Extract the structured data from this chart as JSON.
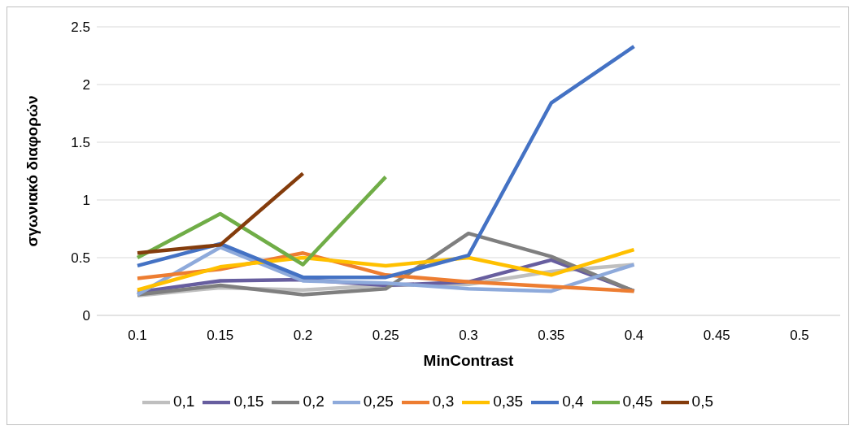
{
  "chart_data": {
    "type": "line",
    "xlabel": "MinContrast",
    "ylabel": "σγωνιακό διαφορών",
    "categories": [
      "0.1",
      "0.15",
      "0.2",
      "0.25",
      "0.3",
      "0.35",
      "0.4",
      "0.45",
      "0.5"
    ],
    "series": [
      {
        "name": "0,1",
        "color": "#bfbfbf",
        "values": [
          0.17,
          0.24,
          0.22,
          0.26,
          0.27,
          0.38,
          0.44,
          null,
          null
        ]
      },
      {
        "name": "0,15",
        "color": "#675e9f",
        "values": [
          0.2,
          0.3,
          0.31,
          0.26,
          0.29,
          0.48,
          0.21,
          null,
          null
        ]
      },
      {
        "name": "0,2",
        "color": "#7f7f7f",
        "values": [
          0.18,
          0.26,
          0.18,
          0.23,
          0.71,
          0.51,
          0.21,
          null,
          null
        ]
      },
      {
        "name": "0,25",
        "color": "#8eaadb",
        "values": [
          0.18,
          0.59,
          0.3,
          0.28,
          0.23,
          0.21,
          0.44,
          null,
          null
        ]
      },
      {
        "name": "0,3",
        "color": "#ed7d31",
        "values": [
          0.32,
          0.4,
          0.54,
          0.35,
          0.29,
          0.25,
          0.21,
          null,
          null
        ]
      },
      {
        "name": "0,35",
        "color": "#ffc000",
        "values": [
          0.22,
          0.42,
          0.5,
          0.43,
          0.5,
          0.35,
          0.57,
          null,
          null
        ]
      },
      {
        "name": "0,4",
        "color": "#4472c4",
        "values": [
          0.43,
          0.62,
          0.33,
          0.33,
          0.52,
          1.84,
          2.33,
          null,
          null
        ]
      },
      {
        "name": "0,45",
        "color": "#70ad47",
        "values": [
          0.5,
          0.88,
          0.44,
          1.2,
          null,
          null,
          null,
          null,
          null
        ]
      },
      {
        "name": "0,5",
        "color": "#843c0c",
        "values": [
          0.54,
          0.61,
          1.23,
          null,
          null,
          null,
          null,
          null,
          null
        ]
      }
    ],
    "ylim": [
      0,
      2.5
    ],
    "yticks": [
      0,
      0.5,
      1,
      1.5,
      2,
      2.5
    ],
    "grid": "y",
    "legend": "bottom",
    "marker": "none",
    "line_style": "solid"
  }
}
